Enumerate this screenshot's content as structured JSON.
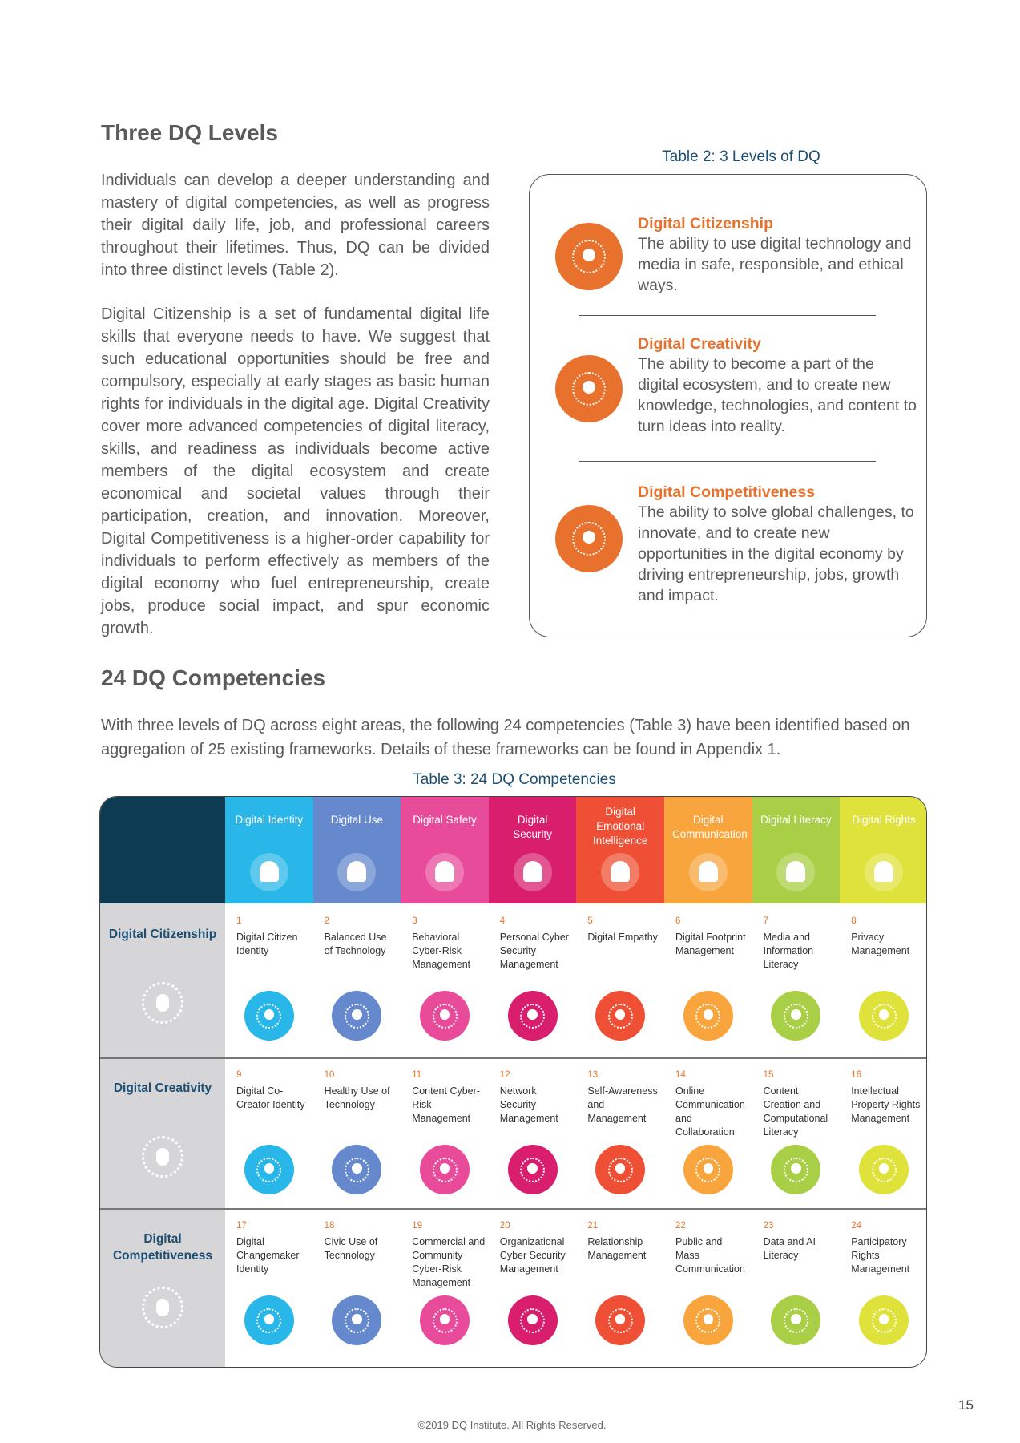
{
  "section1": {
    "title": "Three DQ Levels",
    "paragraphs": [
      "Individuals can develop a deeper understanding and mastery of digital competencies, as well as progress their digital daily life, job, and professional careers throughout their lifetimes. Thus, DQ can be divided into three distinct levels (Table 2).",
      "Digital Citizenship is a set of fundamental digital life skills that everyone needs to have. We suggest that such educational opportunities should be free and compulsory, especially at early stages as basic human rights for individuals in the digital age. Digital Creativity cover more advanced competencies of digital literacy, skills, and readiness as individuals become active members of the digital ecosystem and create economical and societal values through their participation, creation, and innovation. Moreover, Digital Competitiveness is a higher-order capability for individuals to perform effectively as members of the digital economy who fuel entrepreneurship, create jobs, produce social impact, and spur economic growth."
    ]
  },
  "table2": {
    "caption": "Table 2: 3 Levels of DQ",
    "levels": [
      {
        "name": "Digital Citizenship",
        "description": "The ability to use digital technology and media in safe, responsible, and ethical ways."
      },
      {
        "name": "Digital Creativity",
        "description": "The ability to become a part of the digital ecosystem, and to create new knowledge, technologies, and content to turn ideas into reality."
      },
      {
        "name": "Digital Competitiveness",
        "description": "The ability to solve global challenges, to innovate, and to create new opportunities in the digital economy by driving entrepreneurship, jobs, growth and impact."
      }
    ]
  },
  "section2": {
    "title": "24 DQ Competencies",
    "paragraph": "With three levels of DQ across eight areas, the following 24 competencies (Table 3) have been identified based on aggregation of 25 existing frameworks. Details of these frameworks can be found in Appendix 1."
  },
  "table3": {
    "caption": "Table 3: 24 DQ Competencies",
    "areas": [
      "Digital Identity",
      "Digital Use",
      "Digital Safety",
      "Digital Security",
      "Digital Emotional Intelligence",
      "Digital Communication",
      "Digital Literacy",
      "Digital Rights"
    ],
    "levels": [
      "Digital Citizenship",
      "Digital Creativity",
      "Digital Competitiveness"
    ],
    "competencies": [
      {
        "number": 1,
        "name": "Digital Citizen Identity"
      },
      {
        "number": 2,
        "name": "Balanced Use of Technology"
      },
      {
        "number": 3,
        "name": "Behavioral Cyber-Risk Management"
      },
      {
        "number": 4,
        "name": "Personal Cyber Security Management"
      },
      {
        "number": 5,
        "name": "Digital Empathy"
      },
      {
        "number": 6,
        "name": "Digital Footprint Management"
      },
      {
        "number": 7,
        "name": "Media and Information Literacy"
      },
      {
        "number": 8,
        "name": "Privacy Management"
      },
      {
        "number": 9,
        "name": "Digital Co-Creator Identity"
      },
      {
        "number": 10,
        "name": "Healthy Use of Technology"
      },
      {
        "number": 11,
        "name": "Content Cyber-Risk Management"
      },
      {
        "number": 12,
        "name": "Network Security Management"
      },
      {
        "number": 13,
        "name": "Self-Awareness and Management"
      },
      {
        "number": 14,
        "name": "Online Communication and Collaboration"
      },
      {
        "number": 15,
        "name": "Content Creation and Computational Literacy"
      },
      {
        "number": 16,
        "name": "Intellectual Property Rights Management"
      },
      {
        "number": 17,
        "name": "Digital Changemaker Identity"
      },
      {
        "number": 18,
        "name": "Civic Use of Technology"
      },
      {
        "number": 19,
        "name": "Commercial and Community Cyber-Risk Management"
      },
      {
        "number": 20,
        "name": "Organizational Cyber Security Management"
      },
      {
        "number": 21,
        "name": "Relationship Management"
      },
      {
        "number": 22,
        "name": "Public and Mass Communication"
      },
      {
        "number": 23,
        "name": "Data and AI Literacy"
      },
      {
        "number": 24,
        "name": "Participatory Rights Management"
      }
    ]
  },
  "page_number": 15,
  "footer": "©2019 DQ Institute. All Rights Reserved."
}
